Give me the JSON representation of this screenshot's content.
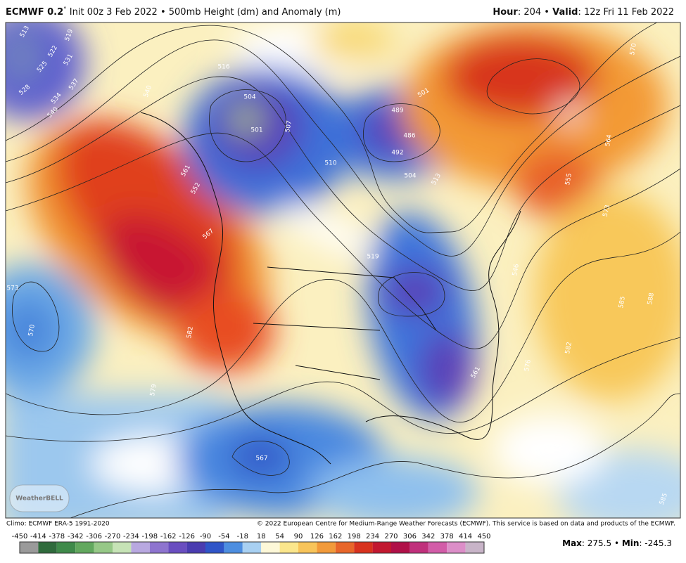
{
  "header": {
    "model": "ECMWF 0.2",
    "degree": "°",
    "init": " Init 00z 3 Feb 2022 • 500mb Height (dm) and Anomaly (m)",
    "hour_label": "Hour",
    "hour": ": 204 • ",
    "valid_label": "Valid",
    "valid": ": 12z Fri 11 Feb 2022"
  },
  "map": {
    "contour_labels": [
      513,
      519,
      522,
      525,
      528,
      531,
      534,
      537,
      540,
      540,
      516,
      504,
      507,
      501,
      510,
      489,
      486,
      492,
      501,
      513,
      504,
      561,
      552,
      567,
      519,
      582,
      573,
      570,
      579,
      567,
      564,
      570,
      555,
      573,
      585,
      588,
      582,
      576,
      546,
      561,
      585
    ],
    "logo": "WeatherBELL"
  },
  "footer": {
    "climo": "Climo: ECMWF ERA-5 1991-2020",
    "copyright": "© 2022 European Centre for Medium-Range Weather Forecasts (ECMWF). This service is based on data and products of the ECMWF."
  },
  "colorbar": {
    "ticks": [
      -450,
      -414,
      -378,
      -342,
      -306,
      -270,
      -234,
      -198,
      -162,
      -126,
      -90,
      -54,
      -18,
      18,
      54,
      90,
      126,
      162,
      198,
      234,
      270,
      306,
      342,
      378,
      414,
      450
    ],
    "colors": [
      "#9a9a9a",
      "#2f6b3c",
      "#3f8a4a",
      "#62a85e",
      "#96c887",
      "#c6e3b6",
      "#b8a8e0",
      "#8e74cf",
      "#6a4ec0",
      "#4a3cb0",
      "#2f55c8",
      "#4d8ee0",
      "#a8d0f2",
      "#fdf8d8",
      "#fbe68c",
      "#f8c45a",
      "#f29a3a",
      "#e8662a",
      "#d8321e",
      "#c21830",
      "#b01048",
      "#c0307c",
      "#d25ca8",
      "#dc8ec8",
      "#c8b4c8"
    ]
  },
  "stats": {
    "max_label": "Max",
    "max": ": 275.5 • ",
    "min_label": "Min",
    "min": ": -245.3"
  }
}
